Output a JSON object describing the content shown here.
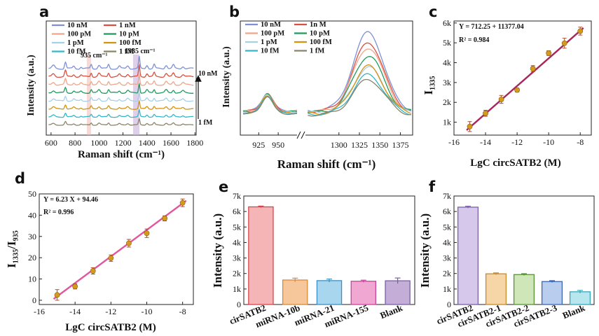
{
  "colors": {
    "series": [
      "#7f8fd6",
      "#d9503f",
      "#f0a58a",
      "#1f9b5e",
      "#a6cfe9",
      "#d4920e",
      "#34b7c9",
      "#8b8368"
    ],
    "fit_line": "#a8275a",
    "fit_line_d": "#e0579e",
    "points": "#d49a1c"
  },
  "panels": [
    {
      "letter": "a"
    },
    {
      "letter": "b"
    },
    {
      "letter": "c"
    },
    {
      "letter": "d"
    },
    {
      "letter": "e"
    },
    {
      "letter": "f"
    }
  ],
  "chart_data": [
    {
      "panel": "a",
      "type": "line",
      "xlabel": "Raman shift (cm⁻¹)",
      "ylabel": "Intensity (a.u.)",
      "xlim": [
        560,
        1810
      ],
      "xticks": [
        600,
        800,
        1000,
        1200,
        1400,
        1600,
        1800
      ],
      "series": [
        {
          "name": "10 nM"
        },
        {
          "name": "1 nM"
        },
        {
          "name": "100 pM"
        },
        {
          "name": "10 pM"
        },
        {
          "name": "1 pM"
        },
        {
          "name": "100 fM"
        },
        {
          "name": "10 fM"
        },
        {
          "name": "1 fM"
        }
      ],
      "peaks": [
        935,
        1335
      ],
      "annotations": [
        "935 cm⁻¹",
        "1335 cm⁻¹",
        "10 nM",
        "1 fM"
      ]
    },
    {
      "panel": "b",
      "type": "line",
      "xlabel": "Raman shift (cm⁻¹)",
      "ylabel": "Intensity (a.u.)",
      "xticks": [
        925,
        950,
        1300,
        1325,
        1350,
        1375
      ],
      "series": [
        {
          "name": "10 nM",
          "peak1335": 1.0
        },
        {
          "name": "1n M",
          "peak1335": 0.88
        },
        {
          "name": "100 pM",
          "peak1335": 0.82
        },
        {
          "name": "10 pM",
          "peak1335": 0.72
        },
        {
          "name": "1 pM",
          "peak1335": 0.58
        },
        {
          "name": "100 fM",
          "peak1335": 0.6
        },
        {
          "name": "10 fM",
          "peak1335": 0.5
        },
        {
          "name": "1 fM",
          "peak1335": 0.45
        }
      ]
    },
    {
      "panel": "c",
      "type": "scatter",
      "equation": "Y = 712.25 + 11377.04",
      "r2": "R² = 0.984",
      "ylabel": "I₁₃₃₅",
      "xlabel": "LgC circSATB2 (M)",
      "xlim": [
        -16,
        -7.3
      ],
      "ylim": [
        350,
        6100
      ],
      "xticks": [
        -16,
        -14,
        -12,
        -10,
        -8
      ],
      "yticks": [
        1000,
        2000,
        3000,
        4000,
        5000,
        6000
      ],
      "ytick_labels": [
        "1k",
        "2k",
        "3k",
        "4k",
        "5k",
        "6k"
      ],
      "x": [
        -15,
        -14,
        -13,
        -12,
        -11,
        -10,
        -9,
        -8
      ],
      "y": [
        780,
        1450,
        2150,
        2620,
        3700,
        4480,
        4980,
        5590
      ],
      "err": [
        250,
        150,
        200,
        100,
        150,
        120,
        250,
        200
      ],
      "fit": {
        "x": [
          -15.2,
          -7.8
        ],
        "y": [
          600,
          5750
        ]
      }
    },
    {
      "panel": "d",
      "type": "scatter",
      "equation": "Y = 6.23 X + 94.46",
      "r2": "R² = 0.996",
      "ylabel": "I₁₃₃₅/I₉₃₅",
      "xlabel": "LgC circSATB2 (M)",
      "xlim": [
        -16,
        -7.4
      ],
      "ylim": [
        -2,
        50
      ],
      "xticks": [
        -16,
        -14,
        -12,
        -10,
        -8
      ],
      "yticks": [
        0,
        10,
        20,
        30,
        40,
        50
      ],
      "x": [
        -15,
        -14,
        -13,
        -12,
        -11,
        -10,
        -9,
        -8
      ],
      "y": [
        2.5,
        6.5,
        13.8,
        19.8,
        26.8,
        31.5,
        38.5,
        45.8
      ],
      "err": [
        2.5,
        1.2,
        1.5,
        1.5,
        1.8,
        2.0,
        1.2,
        1.8
      ],
      "fit": {
        "x": [
          -15.2,
          -7.8
        ],
        "y": [
          0.6,
          46.8
        ]
      }
    },
    {
      "panel": "e",
      "type": "bar",
      "ylabel": "Intensity (a.u.)",
      "ylim": [
        0,
        7000
      ],
      "yticks": [
        0,
        1000,
        2000,
        3000,
        4000,
        5000,
        6000,
        7000
      ],
      "ytick_labels": [
        "0",
        "1k",
        "2k",
        "3k",
        "4k",
        "5k",
        "6k",
        "7k"
      ],
      "categories": [
        "cirSATB2",
        "miRNA-10b",
        "miRNA-21",
        "miRNA-155",
        "Blank"
      ],
      "values": [
        6300,
        1580,
        1540,
        1500,
        1530
      ],
      "err": [
        50,
        120,
        100,
        70,
        180
      ],
      "bar_colors": [
        "#f5b5b7",
        "#f6c79a",
        "#a8d6ee",
        "#f0a8d3",
        "#c4aed8"
      ],
      "edge_colors": [
        "#d6454b",
        "#d88a3a",
        "#3c8fc4",
        "#c8449d",
        "#7a5fa8"
      ]
    },
    {
      "panel": "f",
      "type": "bar",
      "ylabel": "Intensity (a.u.)",
      "ylim": [
        0,
        7000
      ],
      "yticks": [
        0,
        1000,
        2000,
        3000,
        4000,
        5000,
        6000,
        7000
      ],
      "ytick_labels": [
        "0",
        "1k",
        "2k",
        "3k",
        "4k",
        "5k",
        "6k",
        "7k"
      ],
      "categories": [
        "cirSATB2",
        "cirSATB2-1",
        "cirSATB2-2",
        "cirSATB2-3",
        "Blank"
      ],
      "values": [
        6280,
        1980,
        1930,
        1480,
        820
      ],
      "err": [
        60,
        60,
        60,
        60,
        90
      ],
      "bar_colors": [
        "#d6c8ea",
        "#f6d5a6",
        "#cfe6b8",
        "#b9cdee",
        "#b8e6ee"
      ],
      "edge_colors": [
        "#7a5fa8",
        "#c98a2a",
        "#5a8f3a",
        "#3c64b4",
        "#38a7b8"
      ]
    }
  ]
}
